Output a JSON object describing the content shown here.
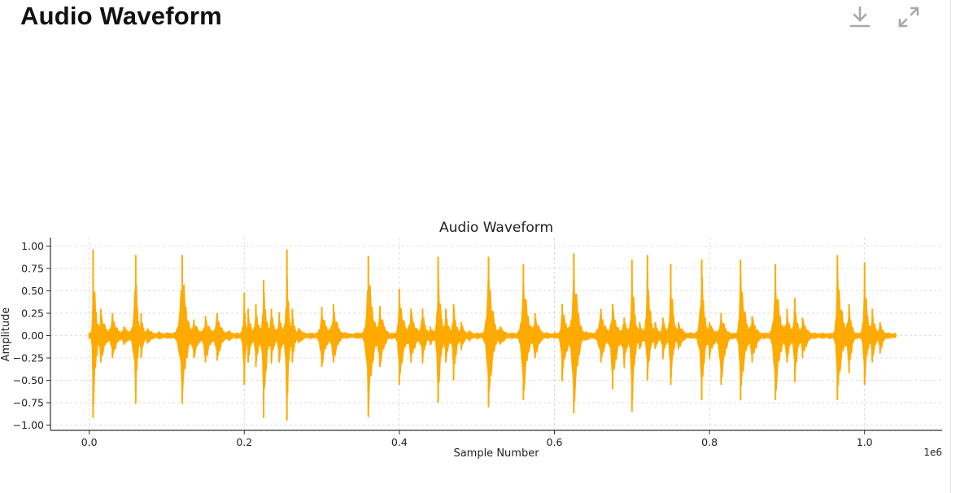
{
  "page": {
    "title": "Audio Waveform"
  },
  "toolbar": {
    "download_icon": "download-icon",
    "expand_icon": "expand-icon",
    "icon_color": "#a8a8a8"
  },
  "chart_data": {
    "type": "line",
    "title": "Audio Waveform",
    "xlabel": "Sample Number",
    "ylabel": "Amplitude",
    "x_scale_label": "1e6",
    "xlim": [
      -0.05,
      1.1
    ],
    "ylim": [
      -1.04,
      1.04
    ],
    "x_ticks": [
      0.0,
      0.2,
      0.4,
      0.6,
      0.8,
      1.0
    ],
    "x_tick_labels": [
      "0.0",
      "0.2",
      "0.4",
      "0.6",
      "0.8",
      "1.0"
    ],
    "y_ticks": [
      1.0,
      0.75,
      0.5,
      0.25,
      0.0,
      -0.25,
      -0.5,
      -0.75,
      -1.0
    ],
    "y_tick_labels": [
      "1.00",
      "0.75",
      "0.50",
      "0.25",
      "0.00",
      "−0.25",
      "−0.50",
      "−0.75",
      "−1.00"
    ],
    "grid": true,
    "legend": "none",
    "color": "#ffaa00",
    "series": [
      {
        "x": [
          0.0,
          0.005,
          0.015,
          0.03,
          0.045,
          0.06,
          0.067,
          0.075,
          0.09,
          0.1,
          0.12,
          0.135,
          0.15,
          0.165,
          0.18,
          0.19,
          0.2,
          0.205,
          0.215,
          0.225,
          0.235,
          0.245,
          0.255,
          0.262,
          0.27,
          0.285,
          0.3,
          0.315,
          0.33,
          0.345,
          0.36,
          0.375,
          0.39,
          0.4,
          0.415,
          0.43,
          0.44,
          0.45,
          0.46,
          0.47,
          0.48,
          0.49,
          0.5,
          0.515,
          0.53,
          0.545,
          0.56,
          0.575,
          0.59,
          0.6,
          0.61,
          0.625,
          0.64,
          0.66,
          0.675,
          0.69,
          0.7,
          0.71,
          0.72,
          0.73,
          0.74,
          0.75,
          0.76,
          0.775,
          0.79,
          0.8,
          0.815,
          0.83,
          0.84,
          0.855,
          0.87,
          0.885,
          0.9,
          0.91,
          0.92,
          0.935,
          0.945,
          0.955,
          0.965,
          0.98,
          0.99,
          1.0,
          1.01,
          1.02,
          1.03,
          1.04
        ],
        "upper": [
          0.02,
          0.96,
          0.3,
          0.25,
          0.1,
          0.9,
          0.25,
          0.08,
          0.03,
          0.02,
          0.9,
          0.18,
          0.22,
          0.25,
          0.05,
          0.02,
          0.48,
          0.3,
          0.35,
          0.62,
          0.3,
          0.26,
          0.96,
          0.3,
          0.08,
          0.02,
          0.32,
          0.35,
          0.02,
          0.02,
          0.89,
          0.33,
          0.02,
          0.52,
          0.3,
          0.3,
          0.1,
          0.88,
          0.3,
          0.35,
          0.15,
          0.05,
          0.02,
          0.88,
          0.1,
          0.02,
          0.8,
          0.25,
          0.02,
          0.02,
          0.35,
          0.92,
          0.04,
          0.3,
          0.35,
          0.2,
          0.85,
          0.15,
          0.9,
          0.15,
          0.2,
          0.8,
          0.15,
          0.02,
          0.85,
          0.15,
          0.25,
          0.02,
          0.85,
          0.22,
          0.02,
          0.8,
          0.3,
          0.42,
          0.2,
          0.02,
          0.02,
          0.02,
          0.9,
          0.35,
          0.02,
          0.82,
          0.3,
          0.15,
          0.02,
          0.02
        ],
        "lower": [
          -0.02,
          -0.92,
          -0.3,
          -0.25,
          -0.1,
          -0.75,
          -0.25,
          -0.08,
          -0.03,
          -0.02,
          -0.75,
          -0.25,
          -0.3,
          -0.28,
          -0.05,
          -0.02,
          -0.55,
          -0.3,
          -0.35,
          -0.92,
          -0.3,
          -0.3,
          -0.95,
          -0.3,
          -0.08,
          -0.02,
          -0.35,
          -0.3,
          -0.02,
          -0.02,
          -0.9,
          -0.35,
          -0.02,
          -0.55,
          -0.3,
          -0.3,
          -0.1,
          -0.75,
          -0.3,
          -0.5,
          -0.15,
          -0.05,
          -0.02,
          -0.8,
          -0.1,
          -0.02,
          -0.72,
          -0.25,
          -0.02,
          -0.02,
          -0.5,
          -0.87,
          -0.04,
          -0.3,
          -0.6,
          -0.35,
          -0.85,
          -0.15,
          -0.5,
          -0.15,
          -0.25,
          -0.55,
          -0.15,
          -0.02,
          -0.72,
          -0.25,
          -0.55,
          -0.02,
          -0.72,
          -0.3,
          -0.02,
          -0.72,
          -0.3,
          -0.52,
          -0.25,
          -0.02,
          -0.02,
          -0.02,
          -0.72,
          -0.42,
          -0.02,
          -0.55,
          -0.3,
          -0.2,
          -0.02,
          -0.02
        ]
      }
    ]
  }
}
